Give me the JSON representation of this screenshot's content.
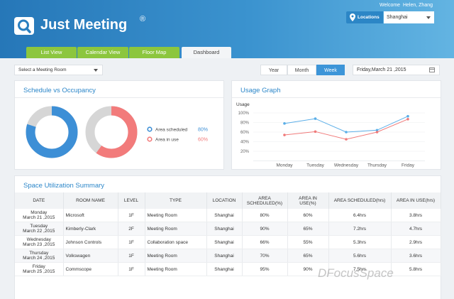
{
  "header": {
    "welcome": "Welcome",
    "user": "Helen, Zhang",
    "app_title": "Just Meeting",
    "trademark": "®",
    "location_label": "Locations",
    "location": "Shanghai"
  },
  "tabs": [
    "List View",
    "Calendar View",
    "Floor Map",
    "Dashboard"
  ],
  "toolbar": {
    "room_select": "Select a Meeting Room",
    "periods": [
      "Year",
      "Month",
      "Week"
    ],
    "date": "Friday,March 21 ,2015"
  },
  "chart_data": [
    {
      "type": "donut",
      "title": "Schedule vs Occupancy",
      "track_color": "#d6d6d6",
      "series": [
        {
          "name": "Area scheduled",
          "color": "#3d8fd6",
          "values": [
            80
          ],
          "value_labels": [
            "80%"
          ]
        },
        {
          "name": "Area in use",
          "color": "#f27b7b",
          "values": [
            60
          ],
          "value_labels": [
            "60%"
          ]
        }
      ]
    },
    {
      "type": "line",
      "title": "Usage Graph",
      "ylabel": "Usage",
      "categories": [
        "Monday",
        "Tuesday",
        "Wednesday",
        "Thursday",
        "Friday"
      ],
      "series": [
        {
          "color": "#5aaee8",
          "values": [
            78,
            88,
            60,
            64,
            93
          ]
        },
        {
          "color": "#f07a7a",
          "values": [
            54,
            61,
            45,
            60,
            87
          ]
        }
      ],
      "ylim": [
        0,
        100
      ],
      "yticks": [
        {
          "value": 20,
          "label": "20%"
        },
        {
          "value": 40,
          "label": "40%"
        },
        {
          "value": 60,
          "label": "60%"
        },
        {
          "value": 80,
          "label": "80%"
        },
        {
          "value": 100,
          "label": "100%"
        }
      ],
      "grid": true
    }
  ],
  "table": {
    "title": "Space Utilization Summary",
    "columns": [
      "DATE",
      "ROOM NAME",
      "LEVEL",
      "TYPE",
      "LOCATION",
      "AREA SCHEDULED(%)",
      "AREA IN USE(%)",
      "AREA SCHEDULED(hrs)",
      "AREA IN USE(hrs)"
    ],
    "rows": [
      {
        "day": "Monday",
        "date": "March 21 ,2015",
        "cells": [
          "Microsoft",
          "1F",
          "Meeting Room",
          "Shanghai",
          "80%",
          "60%",
          "6.4hrs",
          "3.8hrs"
        ]
      },
      {
        "day": "Tuesday",
        "date": "March 22 ,2015",
        "cells": [
          "Kimberly-Clark",
          "2F",
          "Meeting Room",
          "Shanghai",
          "90%",
          "65%",
          "7.2hrs",
          "4.7hrs"
        ]
      },
      {
        "day": "Wednesday",
        "date": "March 23 ,2015",
        "cells": [
          "Johnson Controls",
          "1F",
          "Collaboration space",
          "Shanghai",
          "66%",
          "55%",
          "5.3hrs",
          "2.9hrs"
        ]
      },
      {
        "day": "Thursday",
        "date": "March 24 ,2015",
        "cells": [
          "Volkswagen",
          "1F",
          "Meeting Room",
          "Shanghai",
          "70%",
          "65%",
          "5.6hrs",
          "3.6hrs"
        ]
      },
      {
        "day": "Friday",
        "date": "March 25 ,2015",
        "cells": [
          "Commscope",
          "1F",
          "Meeting Room",
          "Shanghai",
          "95%",
          "90%",
          "7.5hrs",
          "5.8hrs"
        ]
      }
    ]
  },
  "watermark": "DFocusSpace"
}
